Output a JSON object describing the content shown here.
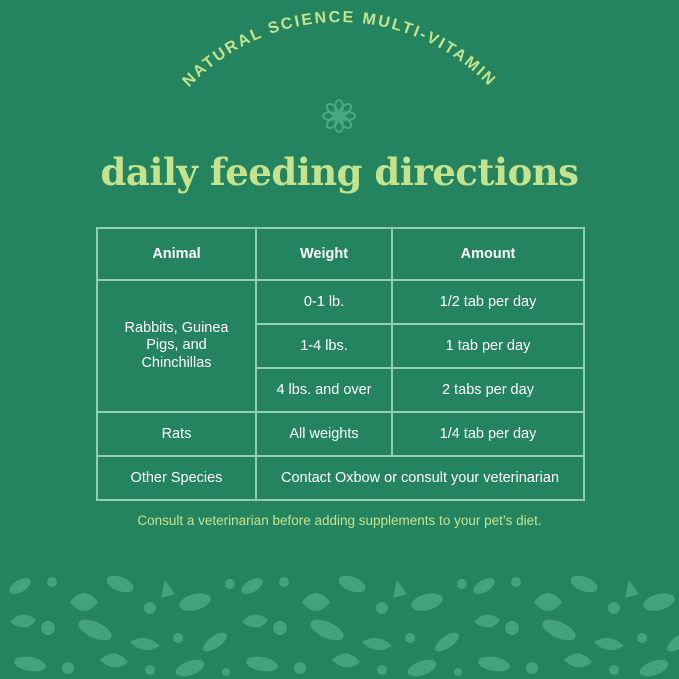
{
  "arc_title": "NATURAL SCIENCE MULTI-VITAMIN",
  "headline": "daily feeding directions",
  "table": {
    "headers": [
      "Animal",
      "Weight",
      "Amount"
    ],
    "rabbits": {
      "animal": "Rabbits, Guinea Pigs, and Chinchillas",
      "rows": [
        {
          "weight": "0-1 lb.",
          "amount": "1/2 tab per day"
        },
        {
          "weight": "1-4 lbs.",
          "amount": "1 tab per day"
        },
        {
          "weight": "4 lbs. and over",
          "amount": "2 tabs per day"
        }
      ]
    },
    "rats": {
      "animal": "Rats",
      "weight": "All weights",
      "amount": "1/4 tab per day"
    },
    "other": {
      "animal": "Other Species",
      "text": "Contact Oxbow or consult your veterinarian"
    }
  },
  "note": "Consult a veterinarian before adding supplements to your pet’s diet.",
  "colors": {
    "background": "#23845f",
    "accent": "#c5e38d",
    "border": "#93cdb6",
    "pattern": "#4aa883"
  }
}
